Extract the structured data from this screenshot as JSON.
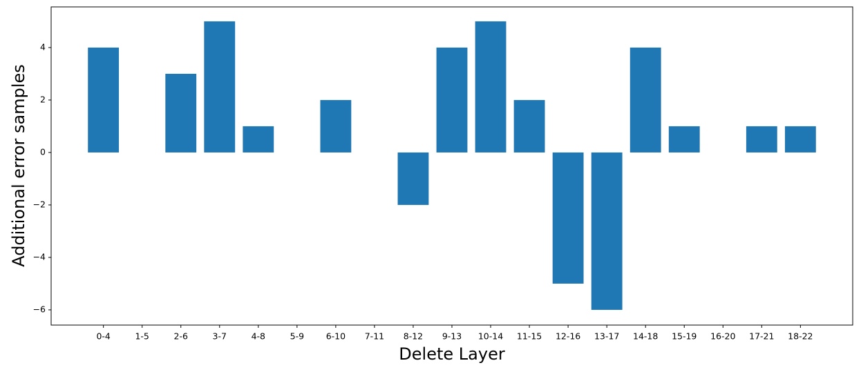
{
  "chart_data": {
    "type": "bar",
    "xlabel": "Delete Layer",
    "ylabel": "Additional error samples",
    "categories": [
      "0-4",
      "1-5",
      "2-6",
      "3-7",
      "4-8",
      "5-9",
      "6-10",
      "7-11",
      "8-12",
      "9-13",
      "10-14",
      "11-15",
      "12-16",
      "13-17",
      "14-18",
      "15-19",
      "16-20",
      "17-21",
      "18-22"
    ],
    "values": [
      4,
      0,
      3,
      5,
      1,
      0,
      2,
      0,
      -2,
      4,
      5,
      2,
      -5,
      -6,
      4,
      1,
      0,
      1,
      1
    ],
    "color": "#1f77b4",
    "ylim": [
      -6.58,
      5.55
    ],
    "yticks": [
      {
        "value": -6,
        "label": "−6"
      },
      {
        "value": -4,
        "label": "−4"
      },
      {
        "value": -2,
        "label": "−2"
      },
      0,
      2,
      4
    ],
    "grid": false
  }
}
